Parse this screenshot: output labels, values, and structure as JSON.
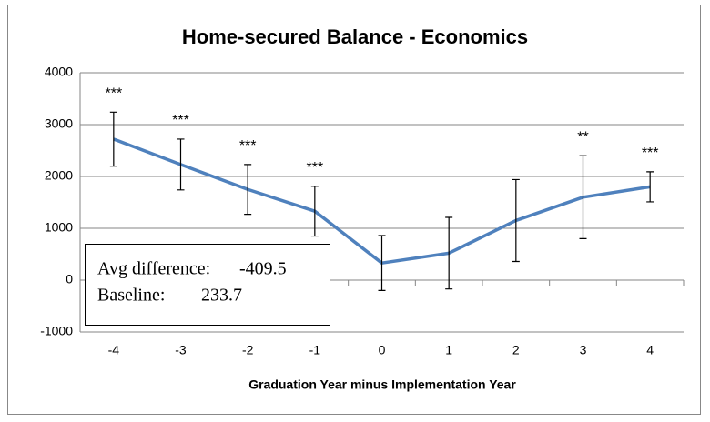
{
  "chart_data": {
    "type": "line",
    "title": "Home-secured Balance - Economics",
    "xlabel": "Graduation Year minus Implementation Year",
    "categories": [
      "-4",
      "-3",
      "-2",
      "-1",
      "0",
      "1",
      "2",
      "3",
      "4"
    ],
    "series": [
      {
        "color": "#4f81bd",
        "values": [
          2720,
          2230,
          1750,
          1330,
          330,
          520,
          1150,
          1600,
          1800
        ],
        "errors": [
          520,
          490,
          480,
          480,
          530,
          690,
          790,
          800,
          290
        ]
      }
    ],
    "significance": [
      "***",
      "***",
      "***",
      "***",
      null,
      null,
      null,
      "**",
      "***"
    ],
    "stats": [
      {
        "label": "Avg difference:",
        "value": -409.5
      },
      {
        "label": "Baseline:",
        "value": 233.7
      }
    ],
    "ylim": [
      -1000,
      4000
    ],
    "yticks": [
      -1000,
      0,
      1000,
      2000,
      3000,
      4000
    ],
    "grid": true
  }
}
